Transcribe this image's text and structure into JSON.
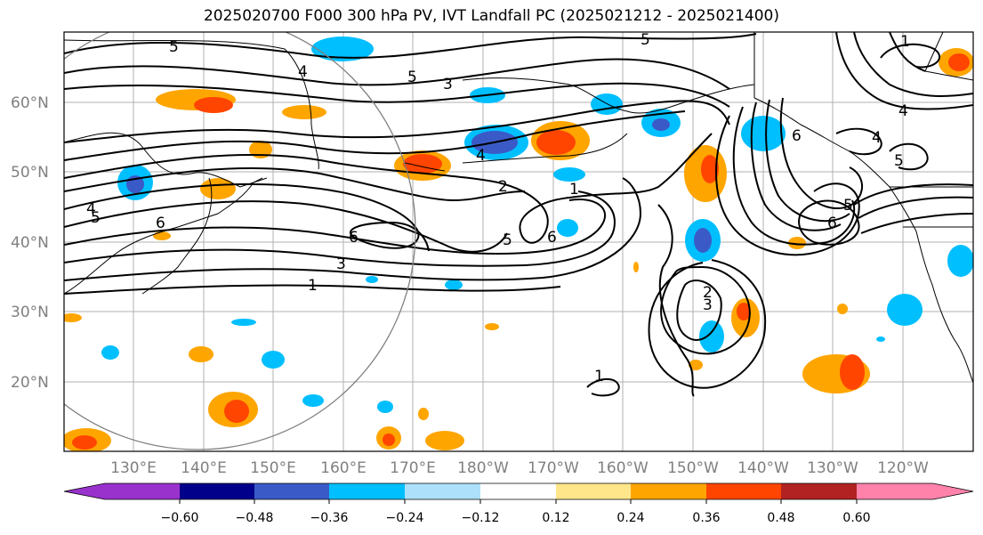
{
  "title": "2025020700 F000 300 hPa PV, IVT Landfall PC (2025021212 - 2025021400)",
  "lat_labels": [
    "60°N",
    "50°N",
    "40°N",
    "30°N",
    "20°N"
  ],
  "lon_labels": [
    "130°E",
    "140°E",
    "150°E",
    "160°E",
    "170°E",
    "180°W",
    "170°W",
    "160°W",
    "150°W",
    "140°W",
    "130°W",
    "120°W"
  ],
  "contour_labels": [
    "5",
    "4",
    "5",
    "3",
    "5",
    "4",
    "2",
    "1",
    "4",
    "3",
    "6",
    "2",
    "1",
    "6",
    "5",
    "6",
    "5",
    "4",
    "5",
    "6",
    "3",
    "1",
    "2",
    "3",
    "1",
    "5",
    "4",
    "6"
  ],
  "colorbar": {
    "ticks": [
      "−0.60",
      "−0.48",
      "−0.36",
      "−0.24",
      "−0.12",
      "0.12",
      "0.24",
      "0.36",
      "0.48",
      "0.60"
    ],
    "colors": [
      "#9932CC",
      "#00008B",
      "#3A5BC7",
      "#00BFFF",
      "#ADE0FB",
      "#FFFFFF",
      "#FFE68A",
      "#FFA500",
      "#FF4500",
      "#B22222",
      "#FF82AB"
    ]
  }
}
